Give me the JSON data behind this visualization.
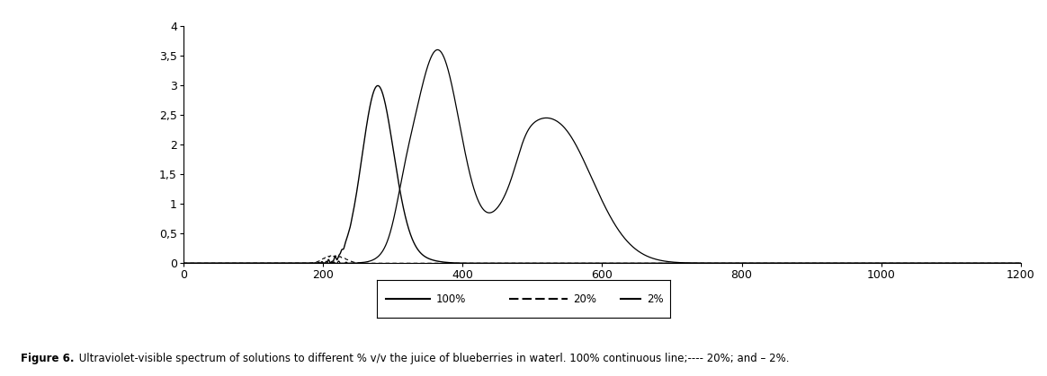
{
  "xlim": [
    0,
    1200
  ],
  "ylim": [
    0,
    4
  ],
  "xticks": [
    0,
    200,
    400,
    600,
    800,
    1000,
    1200
  ],
  "yticks": [
    0,
    0.5,
    1.0,
    1.5,
    2.0,
    2.5,
    3.0,
    3.5,
    4.0
  ],
  "ytick_labels": [
    "0",
    "0,5",
    "1",
    "1,5",
    "2",
    "2,5",
    "3",
    "3,5",
    "4"
  ],
  "background_color": "#ffffff",
  "caption_bold": "Figure 6.",
  "caption_normal": " Ultraviolet-visible spectrum of solutions to different % v/v the juice of blueberries in waterl. 100% continuous line;---- 20%; and – 2%."
}
